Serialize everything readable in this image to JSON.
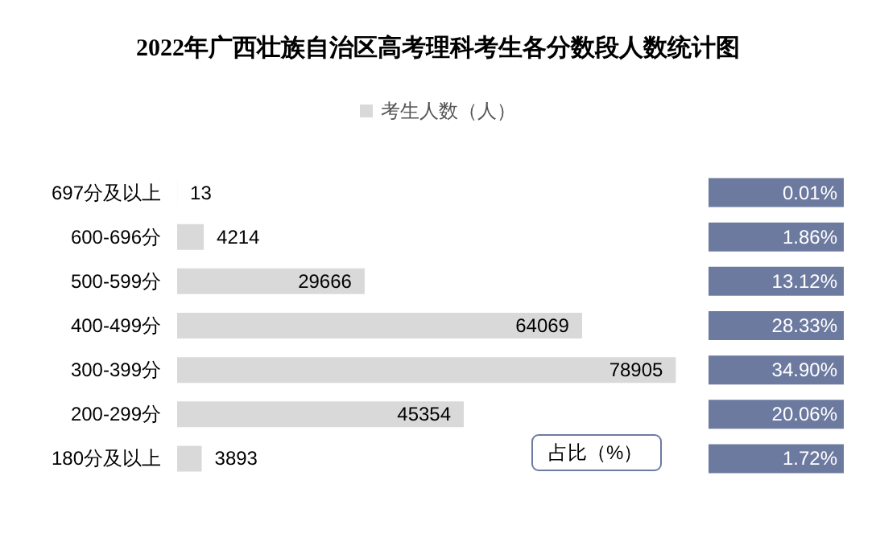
{
  "chart_data": {
    "type": "bar",
    "orientation": "horizontal",
    "title": "2022年广西壮族自治区高考理科考生各分数段人数统计图",
    "categories": [
      "697分及以上",
      "600-696分",
      "500-599分",
      "400-499分",
      "300-399分",
      "200-299分",
      "180分及以上"
    ],
    "series": [
      {
        "name": "考生人数（人）",
        "color": "#d9d9d9",
        "values": [
          13,
          4214,
          29666,
          64069,
          78905,
          45354,
          3893
        ]
      }
    ],
    "annotations": [
      "占比（%）",
      "0.01%",
      "1.86%",
      "13.12%",
      "28.33%",
      "34.90%",
      "20.06%",
      "1.72%"
    ],
    "data_labels": true,
    "legend": "top"
  }
}
